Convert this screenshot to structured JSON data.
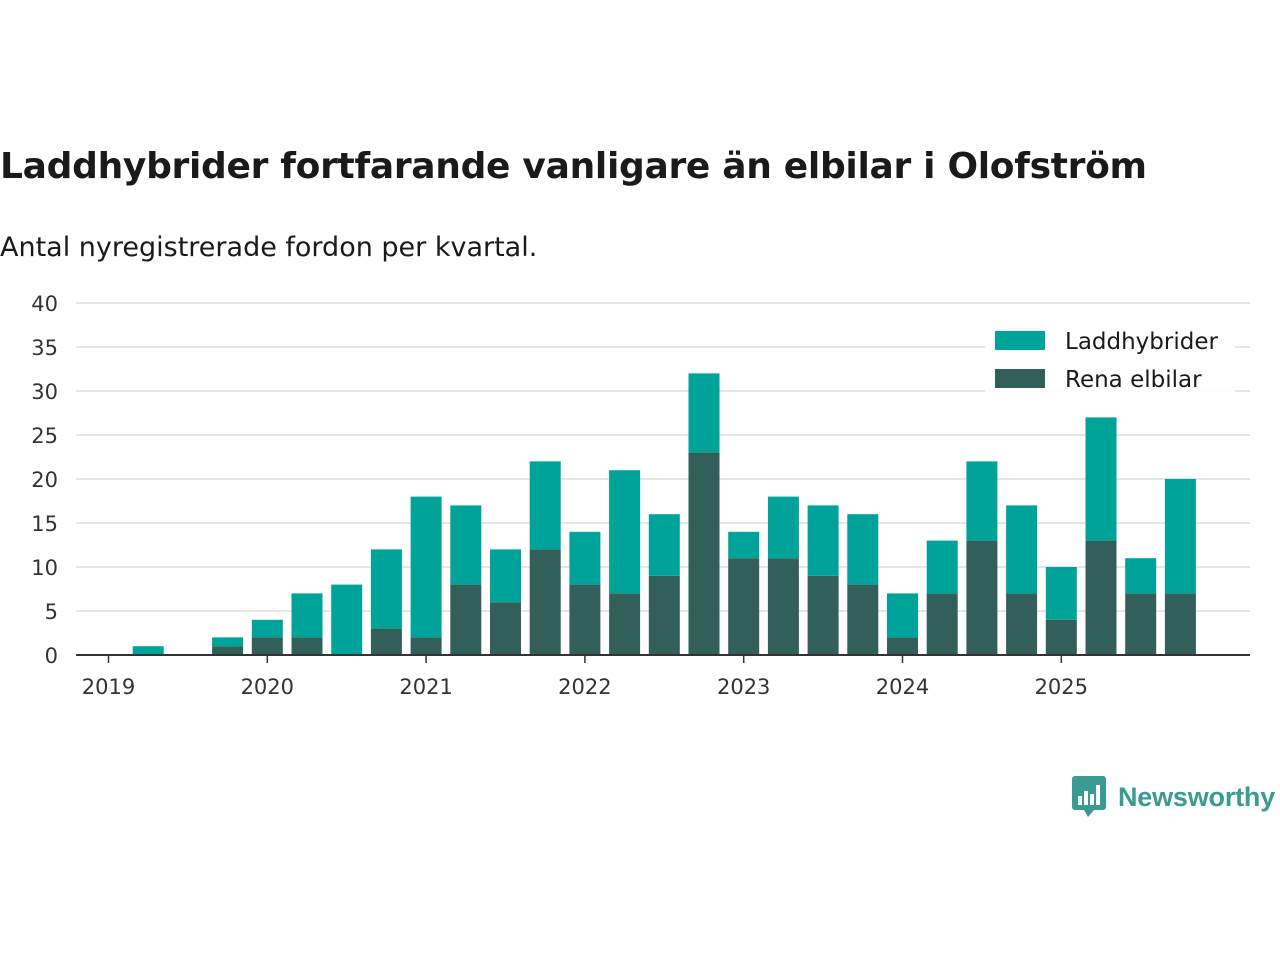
{
  "title": "Laddhybrider fortfarande vanligare än elbilar i Olofström",
  "subtitle": "Antal nyregistrerade fordon per kvartal.",
  "brand": "Newsworthy",
  "colors": {
    "laddhybrider": "#00a39a",
    "rena_elbilar": "#335f5a",
    "grid": "#dddddd",
    "axis": "#333333",
    "brand": "#3a9b92"
  },
  "chart_data": {
    "type": "bar",
    "stacked": true,
    "title": "Laddhybrider fortfarande vanligare än elbilar i Olofström",
    "subtitle": "Antal nyregistrerade fordon per kvartal.",
    "xlabel": "",
    "ylabel": "",
    "ylim": [
      0,
      40
    ],
    "yticks": [
      0,
      5,
      10,
      15,
      20,
      25,
      30,
      35,
      40
    ],
    "year_ticks": [
      "2019",
      "2020",
      "2021",
      "2022",
      "2023",
      "2024",
      "2025"
    ],
    "categories": [
      "2019 Q1",
      "2019 Q2",
      "2019 Q3",
      "2019 Q4",
      "2020 Q1",
      "2020 Q2",
      "2020 Q3",
      "2020 Q4",
      "2021 Q1",
      "2021 Q2",
      "2021 Q3",
      "2021 Q4",
      "2022 Q1",
      "2022 Q2",
      "2022 Q3",
      "2022 Q4",
      "2023 Q1",
      "2023 Q2",
      "2023 Q3",
      "2023 Q4",
      "2024 Q1",
      "2024 Q2",
      "2024 Q3",
      "2024 Q4",
      "2025 Q1",
      "2025 Q2",
      "2025 Q3",
      "2025 Q4"
    ],
    "series": [
      {
        "name": "Rena elbilar",
        "values": [
          0,
          0,
          0,
          1,
          2,
          2,
          0,
          3,
          2,
          8,
          6,
          12,
          8,
          7,
          9,
          23,
          11,
          11,
          9,
          8,
          2,
          7,
          13,
          7,
          4,
          13,
          7,
          7
        ]
      },
      {
        "name": "Laddhybrider",
        "values": [
          0,
          1,
          0,
          1,
          2,
          5,
          8,
          9,
          16,
          9,
          6,
          10,
          6,
          14,
          7,
          9,
          3,
          7,
          8,
          8,
          5,
          6,
          9,
          10,
          6,
          14,
          4,
          13
        ]
      }
    ],
    "legend": {
      "position": "top-right",
      "entries": [
        "Laddhybrider",
        "Rena elbilar"
      ]
    },
    "grid": true
  }
}
